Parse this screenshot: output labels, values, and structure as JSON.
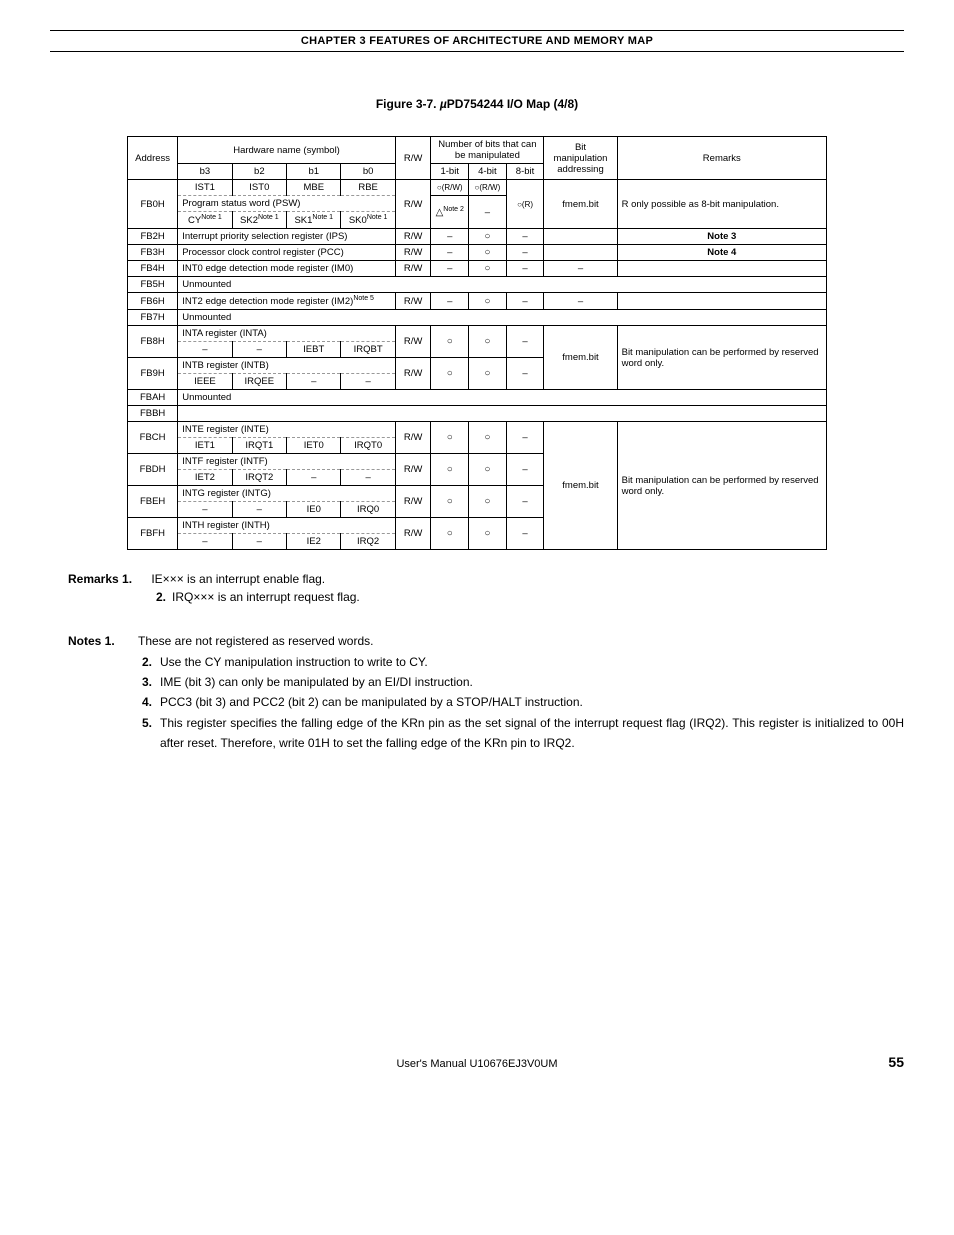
{
  "chapter_header": "CHAPTER 3   FEATURES OF ARCHITECTURE AND MEMORY MAP",
  "figure_title_prefix": "Figure 3-7.  ",
  "figure_title_mu": "µ",
  "figure_title_rest": "PD754244 I/O Map (4/8)",
  "headers": {
    "address": "Address",
    "hardware": "Hardware name (symbol)",
    "b3": "b3",
    "b2": "b2",
    "b1": "b1",
    "b0": "b0",
    "rw": "R/W",
    "bits_top": "Number of bits that can be manipulated",
    "bit1": "1-bit",
    "bit4": "4-bit",
    "bit8": "8-bit",
    "bitmanip_top": "Bit manipulation addressing",
    "remarks": "Remarks"
  },
  "rows": {
    "fb0h": {
      "addr": "FB0H",
      "top": {
        "b3": "IST1",
        "b2": "IST0",
        "b1": "MBE",
        "b0": "RBE"
      },
      "psw_label": "Program status word (PSW)",
      "bot": {
        "b3": "CY",
        "b3_sup": "Note 1",
        "b2": "SK2",
        "b2_sup": "Note 1",
        "b1": "SK1",
        "b1_sup": "Note 1",
        "b0": "SK0",
        "b0_sup": "Note 1"
      },
      "rw": "R/W",
      "bit1_top": "○(R/W)",
      "bit4_top": "○(R/W)",
      "bit8_top": "○(R)",
      "bit1_bot_sup": "Note 2",
      "bm": "fmem.bit",
      "rem": "R only possible as 8-bit manipulation."
    },
    "fb2h": {
      "addr": "FB2H",
      "hw": "Interrupt priority selection register (IPS)",
      "rw": "R/W",
      "rem": "Note 3"
    },
    "fb3h": {
      "addr": "FB3H",
      "hw": "Processor clock control register (PCC)",
      "rw": "R/W",
      "rem": "Note 4"
    },
    "fb4h": {
      "addr": "FB4H",
      "hw": "INT0 edge detection mode register (IM0)",
      "rw": "R/W"
    },
    "fb5h": {
      "addr": "FB5H",
      "hw": "Unmounted"
    },
    "fb6h": {
      "addr": "FB6H",
      "hw": "INT2 edge detection mode register (IM2)",
      "hw_sup": "Note 5",
      "rw": "R/W"
    },
    "fb7h": {
      "addr": "FB7H",
      "hw": "Unmounted"
    },
    "fb8h": {
      "addr": "FB8H",
      "title": "INTA register (INTA)",
      "b3": "–",
      "b2": "–",
      "b1": "IEBT",
      "b0": "IRQBT",
      "rw": "R/W",
      "bm": "fmem.bit",
      "rem": "Bit manipulation can be performed by reserved word only."
    },
    "fb9h": {
      "addr": "FB9H",
      "title": "INTB register (INTB)",
      "b3": "IEEE",
      "b2": "IRQEE",
      "b1": "–",
      "b0": "–",
      "rw": "R/W"
    },
    "fbah": {
      "addr": "FBAH",
      "hw": "Unmounted"
    },
    "fbbh": {
      "addr": "FBBH"
    },
    "fbch": {
      "addr": "FBCH",
      "title": "INTE register (INTE)",
      "b3": "IET1",
      "b2": "IRQT1",
      "b1": "IET0",
      "b0": "IRQT0",
      "rw": "R/W",
      "bm": "fmem.bit",
      "rem": "Bit manipulation can be performed by reserved word only."
    },
    "fbdh": {
      "addr": "FBDH",
      "title": "INTF register (INTF)",
      "b3": "IET2",
      "b2": "IRQT2",
      "b1": "–",
      "b0": "–",
      "rw": "R/W"
    },
    "fbeh": {
      "addr": "FBEH",
      "title": "INTG register (INTG)",
      "b3": "–",
      "b2": "–",
      "b1": "IE0",
      "b0": "IRQ0",
      "rw": "R/W"
    },
    "fbfh": {
      "addr": "FBFH",
      "title": "INTH register (INTH)",
      "b3": "–",
      "b2": "–",
      "b1": "IE2",
      "b0": "IRQ2",
      "rw": "R/W"
    }
  },
  "remarks": {
    "label": "Remarks 1.",
    "r1": "IE××× is an interrupt enable flag.",
    "n2": "2.",
    "r2": "IRQ××× is an interrupt request flag."
  },
  "notes": {
    "label": "Notes 1.",
    "n1": "These are not registered as reserved words.",
    "l2": "2.",
    "n2": "Use the CY manipulation instruction to write to CY.",
    "l3": "3.",
    "n3": "IME (bit 3) can only be manipulated by an EI/DI instruction.",
    "l4": "4.",
    "n4": "PCC3 (bit 3) and PCC2 (bit 2) can be manipulated by a STOP/HALT instruction.",
    "l5": "5.",
    "n5": "This register specifies the falling edge of the KRn pin as the set signal of the interrupt request flag (IRQ2).  This register is initialized to 00H after reset.  Therefore, write 01H to set the falling edge of the KRn pin to IRQ2."
  },
  "footer": {
    "manual": "User's Manual  U10676EJ3V0UM",
    "page": "55"
  }
}
